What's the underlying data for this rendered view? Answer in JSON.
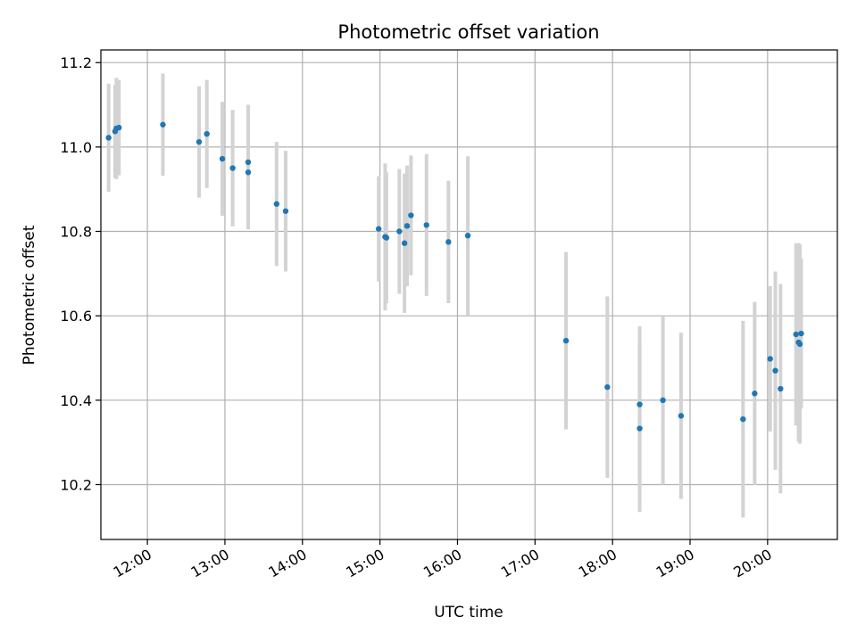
{
  "chart_data": {
    "type": "scatter",
    "title": "Photometric offset variation",
    "xlabel": "UTC time",
    "ylabel": "Photometric offset",
    "xlim": [
      "11:24",
      "20:54"
    ],
    "ylim": [
      10.07,
      11.23
    ],
    "xticks": [
      "12:00",
      "13:00",
      "14:00",
      "15:00",
      "16:00",
      "17:00",
      "18:00",
      "19:00",
      "20:00"
    ],
    "yticks": [
      "10.2",
      "10.4",
      "10.6",
      "10.8",
      "11.0",
      "11.2"
    ],
    "grid": true,
    "colors": {
      "marker": "#1f77b4",
      "errorbar": "#d3d3d3"
    },
    "points": [
      {
        "x": "11:30",
        "y": 11.022,
        "yerr": 0.128
      },
      {
        "x": "11:35",
        "y": 11.037,
        "yerr": 0.11
      },
      {
        "x": "11:36",
        "y": 11.044,
        "yerr": 0.12
      },
      {
        "x": "11:38",
        "y": 11.046,
        "yerr": 0.113
      },
      {
        "x": "12:12",
        "y": 11.053,
        "yerr": 0.121
      },
      {
        "x": "12:40",
        "y": 11.012,
        "yerr": 0.132
      },
      {
        "x": "12:46",
        "y": 11.031,
        "yerr": 0.128
      },
      {
        "x": "12:58",
        "y": 10.972,
        "yerr": 0.135
      },
      {
        "x": "13:06",
        "y": 10.95,
        "yerr": 0.138
      },
      {
        "x": "13:18",
        "y": 10.964,
        "yerr": 0.136
      },
      {
        "x": "13:18",
        "y": 10.94,
        "yerr": 0.135
      },
      {
        "x": "13:40",
        "y": 10.865,
        "yerr": 0.147
      },
      {
        "x": "13:47",
        "y": 10.848,
        "yerr": 0.143
      },
      {
        "x": "14:59",
        "y": 10.806,
        "yerr": 0.125
      },
      {
        "x": "15:04",
        "y": 10.787,
        "yerr": 0.174
      },
      {
        "x": "15:05",
        "y": 10.785,
        "yerr": 0.155
      },
      {
        "x": "15:15",
        "y": 10.8,
        "yerr": 0.148
      },
      {
        "x": "15:19",
        "y": 10.772,
        "yerr": 0.165
      },
      {
        "x": "15:21",
        "y": 10.813,
        "yerr": 0.143
      },
      {
        "x": "15:24",
        "y": 10.838,
        "yerr": 0.142
      },
      {
        "x": "15:36",
        "y": 10.815,
        "yerr": 0.168
      },
      {
        "x": "15:53",
        "y": 10.775,
        "yerr": 0.145
      },
      {
        "x": "16:08",
        "y": 10.79,
        "yerr": 0.188
      },
      {
        "x": "17:24",
        "y": 10.541,
        "yerr": 0.21
      },
      {
        "x": "17:56",
        "y": 10.431,
        "yerr": 0.215
      },
      {
        "x": "18:21",
        "y": 10.39,
        "yerr": 0.185
      },
      {
        "x": "18:21",
        "y": 10.333,
        "yerr": 0.198
      },
      {
        "x": "18:39",
        "y": 10.4,
        "yerr": 0.2
      },
      {
        "x": "18:53",
        "y": 10.363,
        "yerr": 0.197
      },
      {
        "x": "19:41",
        "y": 10.355,
        "yerr": 0.233
      },
      {
        "x": "19:50",
        "y": 10.416,
        "yerr": 0.217
      },
      {
        "x": "20:02",
        "y": 10.498,
        "yerr": 0.172
      },
      {
        "x": "20:06",
        "y": 10.47,
        "yerr": 0.235
      },
      {
        "x": "20:10",
        "y": 10.427,
        "yerr": 0.248
      },
      {
        "x": "20:22",
        "y": 10.556,
        "yerr": 0.216
      },
      {
        "x": "20:24",
        "y": 10.537,
        "yerr": 0.235
      },
      {
        "x": "20:25",
        "y": 10.533,
        "yerr": 0.236
      },
      {
        "x": "20:26",
        "y": 10.558,
        "yerr": 0.178
      }
    ]
  }
}
